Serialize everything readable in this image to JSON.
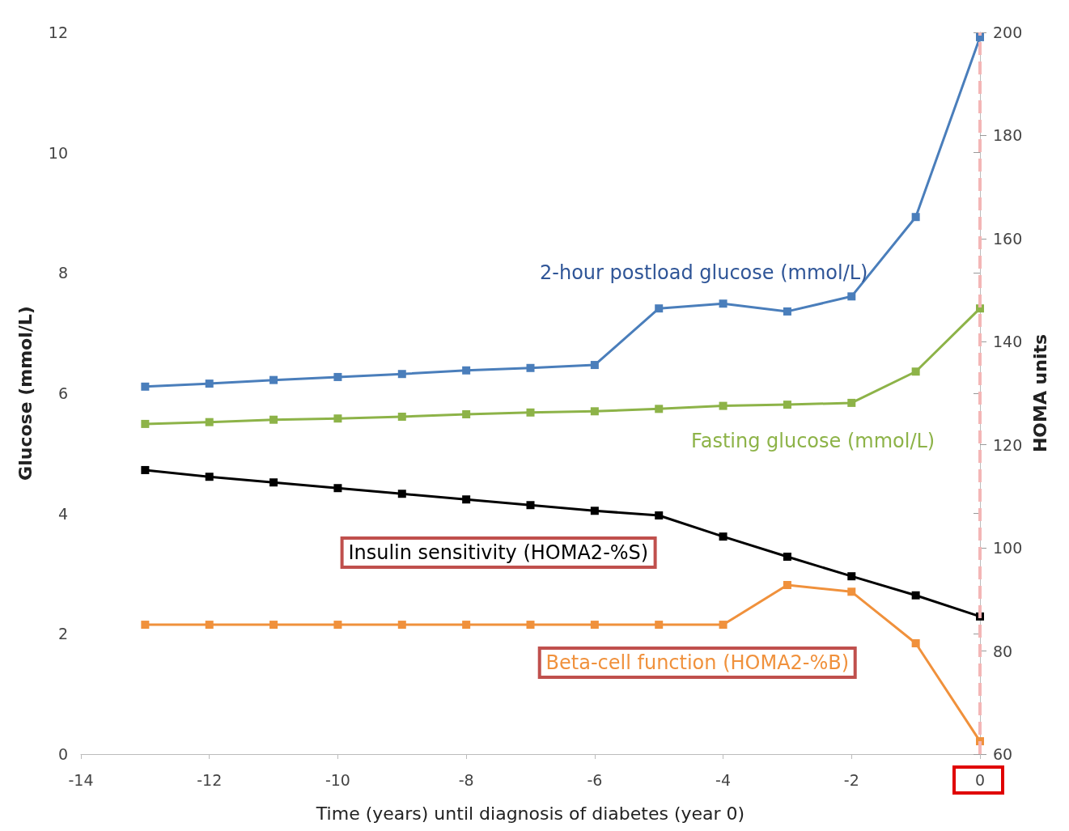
{
  "chart_data": {
    "type": "line",
    "xlabel": "Time (years) until diagnosis of diabetes (year 0)",
    "ylabel": "Glucose (mmol/L)",
    "y2label": "HOMA units",
    "x": [
      -13,
      -12,
      -11,
      -10,
      -9,
      -8,
      -7,
      -6,
      -5,
      -4,
      -3,
      -2,
      -1,
      0
    ],
    "series": [
      {
        "name": "2-hour postload glucose (mmol/L)",
        "color": "#4a7ebb",
        "values": [
          6.11,
          6.16,
          6.22,
          6.27,
          6.32,
          6.38,
          6.42,
          6.47,
          7.41,
          7.49,
          7.36,
          7.61,
          8.93,
          11.92
        ]
      },
      {
        "name": "Fasting glucose (mmol/L)",
        "color": "#8db348",
        "values": [
          5.49,
          5.52,
          5.56,
          5.58,
          5.61,
          5.65,
          5.68,
          5.7,
          5.74,
          5.79,
          5.81,
          5.84,
          6.36,
          7.41
        ]
      },
      {
        "name": "Insulin sensitivity (HOMA2-%S)",
        "color": "#000000",
        "axis": "y2",
        "values": [
          115.1,
          113.8,
          112.7,
          111.6,
          110.5,
          109.4,
          108.3,
          107.2,
          106.3,
          102.2,
          98.3,
          94.5,
          90.8,
          86.7
        ]
      },
      {
        "name": "Beta-cell function (HOMA2-%B)",
        "color": "#f0913c",
        "axis": "y2",
        "values": [
          85.1,
          85.1,
          85.1,
          85.1,
          85.1,
          85.1,
          85.1,
          85.1,
          85.1,
          85.1,
          92.8,
          91.5,
          81.5,
          62.5
        ]
      }
    ],
    "xlim": [
      -14,
      0
    ],
    "xticks": [
      -14,
      -12,
      -10,
      -8,
      -6,
      -4,
      -2,
      0
    ],
    "ylim": [
      0,
      12
    ],
    "yticks": [
      0,
      2,
      4,
      6,
      8,
      10,
      12
    ],
    "y2lim": [
      60,
      200
    ],
    "y2ticks": [
      60,
      80,
      100,
      120,
      140,
      160,
      180,
      200
    ],
    "ref_lines": [
      {
        "axis": "x",
        "value": 0,
        "color": "#f4b6b6",
        "line_style": "dashed"
      }
    ],
    "grid": false,
    "legend": false,
    "marker": "square",
    "line_style": "solid"
  }
}
